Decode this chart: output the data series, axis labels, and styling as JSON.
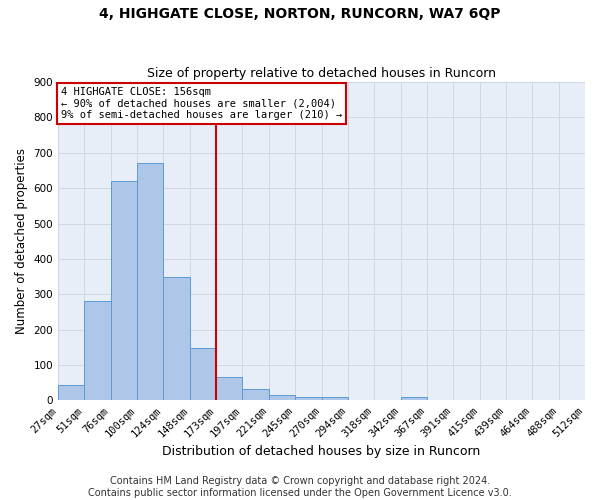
{
  "title1": "4, HIGHGATE CLOSE, NORTON, RUNCORN, WA7 6QP",
  "title2": "Size of property relative to detached houses in Runcorn",
  "xlabel": "Distribution of detached houses by size in Runcorn",
  "ylabel": "Number of detached properties",
  "footer_line1": "Contains HM Land Registry data © Crown copyright and database right 2024.",
  "footer_line2": "Contains public sector information licensed under the Open Government Licence v3.0.",
  "bin_labels": [
    "27sqm",
    "51sqm",
    "76sqm",
    "100sqm",
    "124sqm",
    "148sqm",
    "173sqm",
    "197sqm",
    "221sqm",
    "245sqm",
    "270sqm",
    "294sqm",
    "318sqm",
    "342sqm",
    "367sqm",
    "391sqm",
    "415sqm",
    "439sqm",
    "464sqm",
    "488sqm",
    "512sqm"
  ],
  "bar_heights": [
    45,
    280,
    620,
    670,
    348,
    148,
    65,
    32,
    15,
    10,
    10,
    0,
    0,
    10,
    0,
    0,
    0,
    0,
    0,
    0
  ],
  "bar_color": "#aec6e8",
  "bar_edge_color": "#5b9bd5",
  "vline_x": 6.0,
  "vline_color": "#cc0000",
  "annotation_text": "4 HIGHGATE CLOSE: 156sqm\n← 90% of detached houses are smaller (2,004)\n9% of semi-detached houses are larger (210) →",
  "annotation_box_color": "#cc0000",
  "ylim": [
    0,
    900
  ],
  "yticks": [
    0,
    100,
    200,
    300,
    400,
    500,
    600,
    700,
    800,
    900
  ],
  "grid_color": "#d0d8e8",
  "bg_color": "#e8eef8",
  "title1_fontsize": 10,
  "title2_fontsize": 9,
  "xlabel_fontsize": 9,
  "ylabel_fontsize": 8.5,
  "tick_fontsize": 7.5,
  "annot_fontsize": 7.5,
  "footer_fontsize": 7
}
